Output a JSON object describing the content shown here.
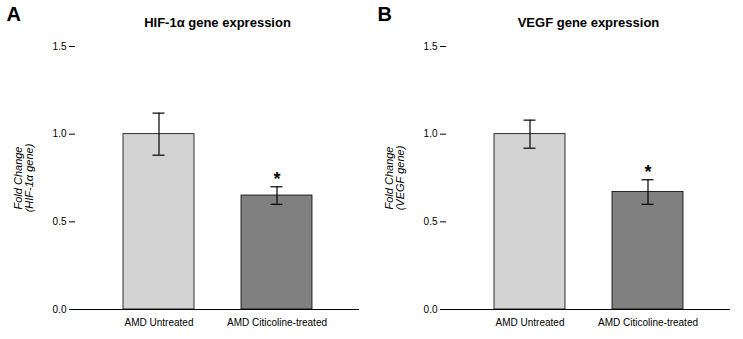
{
  "chart_data": [
    {
      "type": "bar",
      "title": "HIF-1α gene expression",
      "y_label": "Fold Change\n(HIF-1α gene)",
      "categories": [
        "AMD Untreated",
        "AMD Citicoline-treated"
      ],
      "values": [
        1.0,
        0.65
      ],
      "errors": [
        0.12,
        0.05
      ],
      "colors": [
        "#d3d3d3",
        "#808080"
      ],
      "ylim": [
        0,
        1.5
      ],
      "yticks": [
        {
          "value": 0,
          "label": "0.0"
        },
        {
          "value": 0.5,
          "label": "0.5"
        },
        {
          "value": 1,
          "label": "1.0"
        },
        {
          "value": 1.5,
          "label": "1.5"
        }
      ],
      "grid": false,
      "annotations": [
        {
          "text": "A"
        },
        {
          "text": "*",
          "category": "AMD Citicoline-treated"
        }
      ]
    },
    {
      "type": "bar",
      "title": "VEGF gene expression",
      "y_label": "Fold Change\n(VEGF gene)",
      "categories": [
        "AMD Untreated",
        "AMD Citicoline-treated"
      ],
      "values": [
        1.0,
        0.67
      ],
      "errors": [
        0.08,
        0.07
      ],
      "colors": [
        "#d3d3d3",
        "#808080"
      ],
      "ylim": [
        0,
        1.5
      ],
      "yticks": [
        {
          "value": 0,
          "label": "0.0"
        },
        {
          "value": 0.5,
          "label": "0.5"
        },
        {
          "value": 1,
          "label": "1.0"
        },
        {
          "value": 1.5,
          "label": "1.5"
        }
      ],
      "grid": false,
      "annotations": [
        {
          "text": "B"
        },
        {
          "text": "*",
          "category": "AMD Citicoline-treated"
        }
      ]
    }
  ]
}
